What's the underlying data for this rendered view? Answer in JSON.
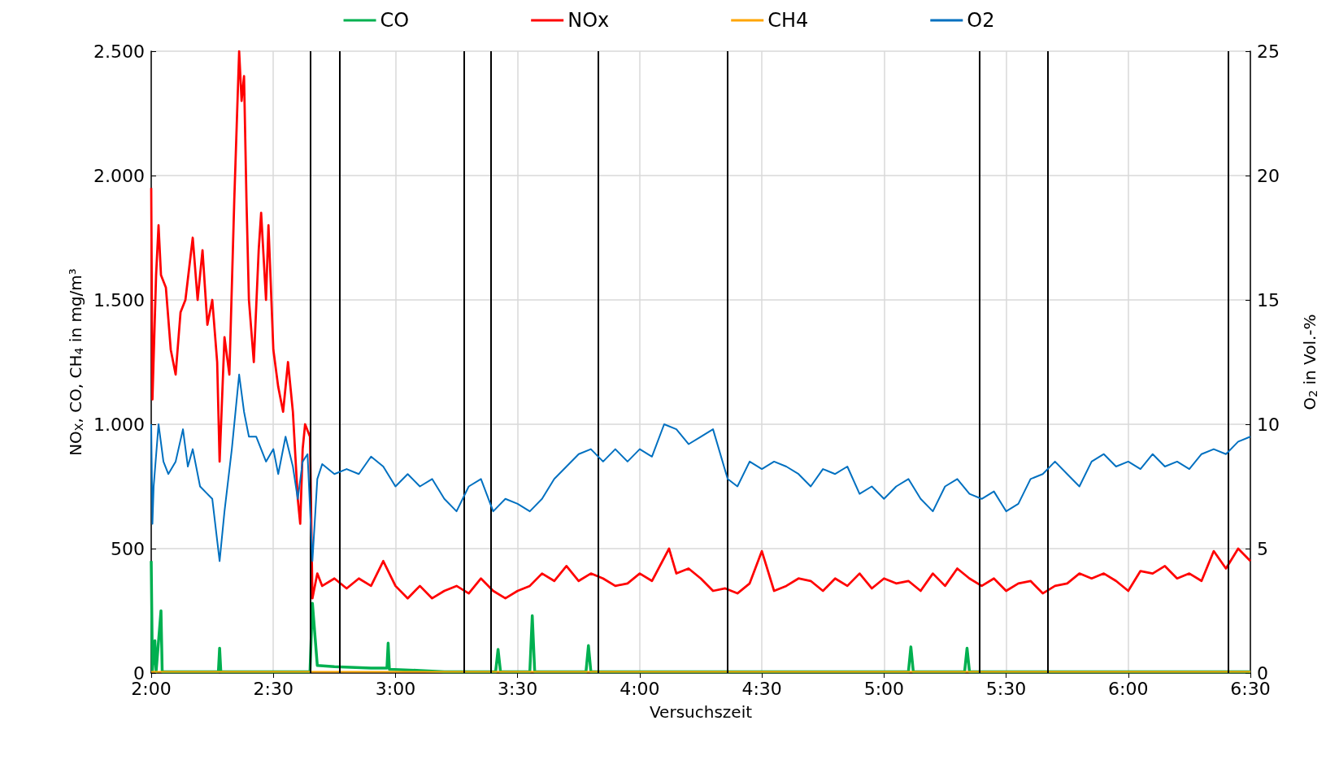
{
  "chart_data": {
    "type": "line",
    "xlabel": "Versuchszeit",
    "ylabel": "NO$_{X}$, CO, CH$_{4}$ in mg/m³",
    "y2label": "O$_{2}$ in Vol.-%",
    "xlim": [
      2,
      6.5
    ],
    "xticks": [
      {
        "value": 2,
        "label": "2:00"
      },
      {
        "value": 2.5,
        "label": "2:30"
      },
      {
        "value": 3,
        "label": "3:00"
      },
      {
        "value": 3.5,
        "label": "3:30"
      },
      {
        "value": 4,
        "label": "4:00"
      },
      {
        "value": 4.5,
        "label": "4:30"
      },
      {
        "value": 5,
        "label": "5:00"
      },
      {
        "value": 5.5,
        "label": "5:30"
      },
      {
        "value": 6,
        "label": "6:00"
      },
      {
        "value": 6.5,
        "label": "6:30"
      }
    ],
    "ylim": [
      0,
      2500
    ],
    "yticks": [
      0,
      500,
      {
        "value": 1000,
        "label": "1.000"
      },
      {
        "value": 1500,
        "label": "1.500"
      },
      {
        "value": 2000,
        "label": "2.000"
      },
      {
        "value": 2500,
        "label": "2.500"
      }
    ],
    "y2lim": [
      0,
      25
    ],
    "y2ticks": [
      0,
      5,
      10,
      15,
      20,
      25
    ],
    "grid": true,
    "legend": "top",
    "marker": "none",
    "line_style": "solid",
    "ref_lines": [
      {
        "axis": "x",
        "value": 2.646,
        "color": "#000000"
      },
      {
        "axis": "x",
        "value": 2.766,
        "color": "#000000"
      },
      {
        "axis": "x",
        "value": 3.278,
        "color": "#000000"
      },
      {
        "axis": "x",
        "value": 3.394,
        "color": "#000000"
      },
      {
        "axis": "x",
        "value": 3.827,
        "color": "#000000"
      },
      {
        "axis": "x",
        "value": 4.358,
        "color": "#000000"
      },
      {
        "axis": "x",
        "value": 5.391,
        "color": "#000000"
      },
      {
        "axis": "x",
        "value": 5.673,
        "color": "#000000"
      },
      {
        "axis": "x",
        "value": 6.406,
        "color": "#000000"
      }
    ],
    "series": [
      {
        "name": "CO",
        "color": "#00b050",
        "x": [
          2,
          2.005,
          2.015,
          2.02,
          2.04,
          2.045,
          2.275,
          2.28,
          2.285,
          2.65,
          2.66,
          2.68,
          2.75,
          2.9,
          2.965,
          2.97,
          2.975,
          3.1,
          3.2,
          3.41,
          3.42,
          3.43,
          3.55,
          3.56,
          3.57,
          3.78,
          3.79,
          3.8,
          5.1,
          5.11,
          5.12,
          5.33,
          5.34,
          5.35,
          5.5,
          6.5
        ],
        "values": [
          450,
          10,
          130,
          5,
          250,
          5,
          5,
          100,
          5,
          5,
          280,
          30,
          25,
          20,
          20,
          120,
          15,
          10,
          5,
          5,
          95,
          5,
          5,
          230,
          5,
          5,
          110,
          5,
          5,
          105,
          5,
          5,
          100,
          5,
          5,
          5
        ]
      },
      {
        "name": "NOx",
        "color": "#ff0000",
        "x": [
          2,
          2.005,
          2.02,
          2.03,
          2.04,
          2.06,
          2.08,
          2.1,
          2.12,
          2.14,
          2.17,
          2.19,
          2.21,
          2.23,
          2.25,
          2.27,
          2.28,
          2.3,
          2.32,
          2.34,
          2.35,
          2.36,
          2.37,
          2.38,
          2.39,
          2.4,
          2.42,
          2.44,
          2.45,
          2.47,
          2.48,
          2.5,
          2.52,
          2.54,
          2.56,
          2.58,
          2.6,
          2.61,
          2.62,
          2.63,
          2.65,
          2.66,
          2.68,
          2.7,
          2.75,
          2.8,
          2.85,
          2.9,
          2.95,
          3,
          3.05,
          3.1,
          3.15,
          3.2,
          3.25,
          3.3,
          3.35,
          3.4,
          3.45,
          3.5,
          3.55,
          3.6,
          3.65,
          3.7,
          3.75,
          3.8,
          3.85,
          3.9,
          3.95,
          4,
          4.05,
          4.12,
          4.15,
          4.2,
          4.25,
          4.3,
          4.35,
          4.4,
          4.45,
          4.5,
          4.55,
          4.6,
          4.65,
          4.7,
          4.75,
          4.8,
          4.85,
          4.9,
          4.95,
          5,
          5.05,
          5.1,
          5.15,
          5.2,
          5.25,
          5.3,
          5.35,
          5.4,
          5.45,
          5.5,
          5.55,
          5.6,
          5.65,
          5.7,
          5.75,
          5.8,
          5.85,
          5.9,
          5.95,
          6,
          6.05,
          6.1,
          6.15,
          6.2,
          6.25,
          6.3,
          6.35,
          6.4,
          6.45,
          6.5
        ],
        "values": [
          1950,
          1100,
          1600,
          1800,
          1600,
          1550,
          1300,
          1200,
          1450,
          1500,
          1750,
          1500,
          1700,
          1400,
          1500,
          1250,
          850,
          1350,
          1200,
          1900,
          2200,
          2500,
          2300,
          2400,
          1900,
          1500,
          1250,
          1700,
          1850,
          1500,
          1800,
          1300,
          1150,
          1050,
          1250,
          1050,
          700,
          600,
          900,
          1000,
          950,
          300,
          400,
          350,
          380,
          340,
          380,
          350,
          450,
          350,
          300,
          350,
          300,
          330,
          350,
          320,
          380,
          330,
          300,
          330,
          350,
          400,
          370,
          430,
          370,
          400,
          380,
          350,
          360,
          400,
          370,
          500,
          400,
          420,
          380,
          330,
          340,
          320,
          360,
          490,
          330,
          350,
          380,
          370,
          330,
          380,
          350,
          400,
          340,
          380,
          360,
          370,
          330,
          400,
          350,
          420,
          380,
          350,
          380,
          330,
          360,
          370,
          320,
          350,
          360,
          400,
          380,
          400,
          370,
          330,
          410,
          400,
          430,
          380,
          400,
          370,
          490,
          420,
          500,
          450
        ]
      },
      {
        "name": "CH4",
        "color": "#ffa500",
        "x": [
          2,
          6.5
        ],
        "values": [
          5,
          5
        ]
      },
      {
        "name": "O2",
        "color": "#0070c0",
        "axis": "y2",
        "x": [
          2,
          2.005,
          2.01,
          2.03,
          2.05,
          2.07,
          2.1,
          2.13,
          2.15,
          2.17,
          2.2,
          2.25,
          2.28,
          2.3,
          2.33,
          2.36,
          2.38,
          2.4,
          2.43,
          2.47,
          2.5,
          2.52,
          2.55,
          2.58,
          2.6,
          2.62,
          2.64,
          2.66,
          2.68,
          2.7,
          2.75,
          2.8,
          2.85,
          2.9,
          2.95,
          3,
          3.05,
          3.1,
          3.15,
          3.2,
          3.25,
          3.3,
          3.35,
          3.4,
          3.45,
          3.5,
          3.55,
          3.6,
          3.65,
          3.7,
          3.75,
          3.8,
          3.85,
          3.9,
          3.95,
          4,
          4.05,
          4.1,
          4.15,
          4.2,
          4.25,
          4.3,
          4.36,
          4.4,
          4.45,
          4.5,
          4.55,
          4.6,
          4.65,
          4.7,
          4.75,
          4.8,
          4.85,
          4.9,
          4.95,
          5,
          5.05,
          5.1,
          5.15,
          5.2,
          5.25,
          5.3,
          5.35,
          5.4,
          5.45,
          5.5,
          5.55,
          5.6,
          5.65,
          5.7,
          5.75,
          5.8,
          5.85,
          5.9,
          5.95,
          6,
          6.05,
          6.1,
          6.15,
          6.2,
          6.25,
          6.3,
          6.35,
          6.4,
          6.45,
          6.5
        ],
        "values": [
          10,
          6,
          7.5,
          10,
          8.5,
          8,
          8.5,
          9.8,
          8.3,
          9,
          7.5,
          7,
          4.5,
          6.5,
          9,
          12,
          10.5,
          9.5,
          9.5,
          8.5,
          9,
          8,
          9.5,
          8.3,
          7,
          8.5,
          8.8,
          4.5,
          7.8,
          8.4,
          8,
          8.2,
          8,
          8.7,
          8.3,
          7.5,
          8,
          7.5,
          7.8,
          7,
          6.5,
          7.5,
          7.8,
          6.5,
          7,
          6.8,
          6.5,
          7,
          7.8,
          8.3,
          8.8,
          9,
          8.5,
          9,
          8.5,
          9,
          8.7,
          10,
          9.8,
          9.2,
          9.5,
          9.8,
          7.8,
          7.5,
          8.5,
          8.2,
          8.5,
          8.3,
          8,
          7.5,
          8.2,
          8,
          8.3,
          7.2,
          7.5,
          7,
          7.5,
          7.8,
          7,
          6.5,
          7.5,
          7.8,
          7.2,
          7,
          7.3,
          6.5,
          6.8,
          7.8,
          8,
          8.5,
          8,
          7.5,
          8.5,
          8.8,
          8.3,
          8.5,
          8.2,
          8.8,
          8.3,
          8.5,
          8.2,
          8.8,
          9,
          8.8,
          9.3,
          9.5
        ]
      }
    ]
  }
}
